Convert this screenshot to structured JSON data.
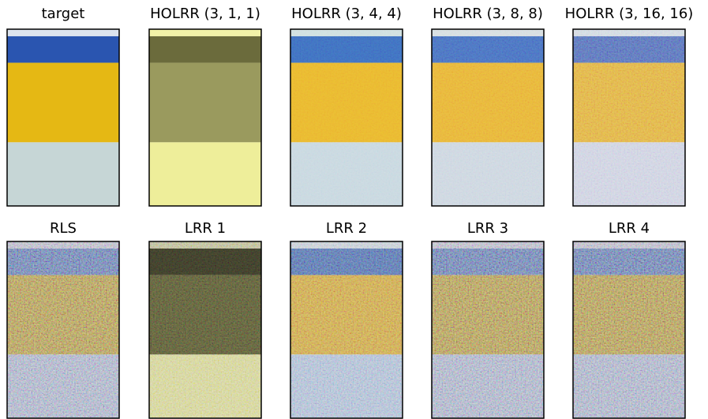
{
  "panels": [
    {
      "title": "target"
    },
    {
      "title": "HOLRR (3, 1, 1)"
    },
    {
      "title": "HOLRR (3, 4, 4)"
    },
    {
      "title": "HOLRR (3, 8, 8)"
    },
    {
      "title": "HOLRR (3, 16, 16)"
    },
    {
      "title": "RLS"
    },
    {
      "title": "LRR 1"
    },
    {
      "title": "LRR 2"
    },
    {
      "title": "LRR 3"
    },
    {
      "title": "LRR 4"
    }
  ]
}
